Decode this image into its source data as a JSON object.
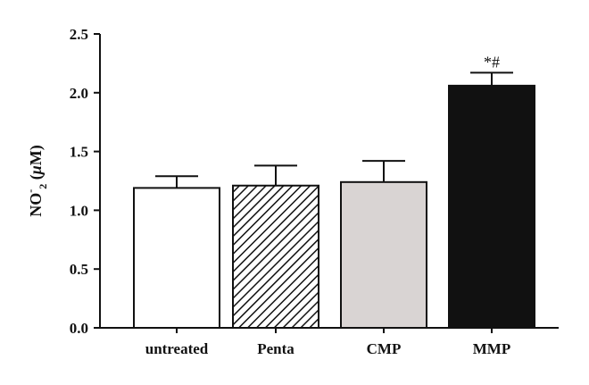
{
  "chart_data": {
    "type": "bar",
    "categories": [
      "untreated",
      "Penta",
      "CMP",
      "MMP"
    ],
    "values": [
      1.19,
      1.21,
      1.24,
      2.06
    ],
    "errors": [
      0.1,
      0.17,
      0.18,
      0.11
    ],
    "fills": [
      "white",
      "hatched",
      "light-gray",
      "black"
    ],
    "annotations": [
      "",
      "",
      "",
      "*#"
    ],
    "ylabel_parts": {
      "base": "NO",
      "sup": "-",
      "sub": "2",
      "unit_open": " (",
      "unit_mu": "μ",
      "unit_rest": "M)"
    },
    "ylim": [
      0,
      2.5
    ],
    "yticks": [
      0.0,
      0.5,
      1.0,
      1.5,
      2.0,
      2.5
    ],
    "ytick_labels": [
      "0.0",
      "0.5",
      "1.0",
      "1.5",
      "2.0",
      "2.5"
    ],
    "grid": false,
    "title": "",
    "xlabel": ""
  },
  "colors": {
    "axis": "#111111",
    "bar_outline": "#111111",
    "light_gray": "#d9d4d3",
    "black": "#111111",
    "white": "#ffffff"
  }
}
